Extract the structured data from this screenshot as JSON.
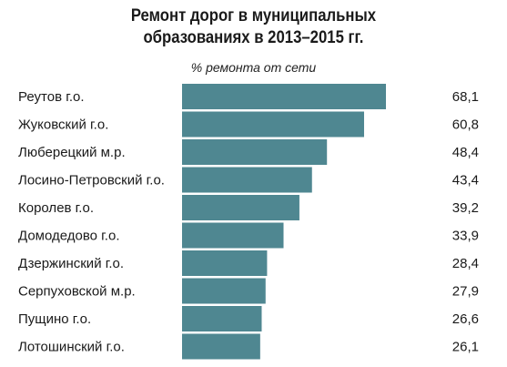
{
  "chart_data": {
    "type": "bar",
    "orientation": "horizontal",
    "title": "Ремонт дорог в муниципальных образованиях в 2013–2015 гг.",
    "title_lines": [
      "Ремонт дорог в муниципальных",
      "образованиях в 2013–2015 гг."
    ],
    "subtitle": "% ремонта от сети",
    "categories": [
      "Реутов г.о.",
      "Жуковский г.о.",
      "Люберецкий м.р.",
      "Лосино-Петровский г.о.",
      "Королев г.о.",
      "Домодедово г.о.",
      "Дзержинский г.о.",
      "Серпуховской м.р.",
      "Пущино г.о.",
      "Лотошинский г.о."
    ],
    "values": [
      68.1,
      60.8,
      48.4,
      43.4,
      39.2,
      33.9,
      28.4,
      27.9,
      26.6,
      26.1
    ],
    "value_labels": [
      "68,1",
      "60,8",
      "48,4",
      "43,4",
      "39,2",
      "33,9",
      "28,4",
      "27,9",
      "26,6",
      "26,1"
    ],
    "xlim": [
      0,
      68.1
    ],
    "grid": false,
    "legend": "none",
    "colors": {
      "bar": "#4f8791"
    }
  }
}
